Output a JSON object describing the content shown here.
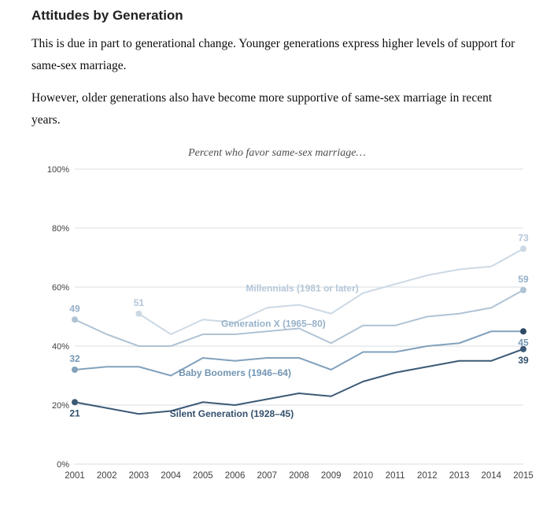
{
  "header": {
    "title": "Attitudes by Generation"
  },
  "paragraphs": [
    "This is due in part to generational change. Younger generations express higher levels of support for same-sex marriage.",
    "However, older generations also have become more supportive of same-sex marriage in recent years."
  ],
  "chart_data": {
    "type": "line",
    "title": "Percent who favor same-sex marriage…",
    "xlabel": "",
    "ylabel": "",
    "ylim": [
      0,
      100
    ],
    "yticks": [
      0,
      20,
      40,
      60,
      80,
      100
    ],
    "ytick_suffix": "%",
    "grid": true,
    "legend_position": "inline",
    "x": [
      2001,
      2002,
      2003,
      2004,
      2005,
      2006,
      2007,
      2008,
      2009,
      2010,
      2011,
      2012,
      2013,
      2014,
      2015
    ],
    "series": [
      {
        "name": "Millennials (1981 or later)",
        "color": "#ccd9e5",
        "label_color": "#b3c6d8",
        "x": [
          2003,
          2004,
          2005,
          2006,
          2007,
          2008,
          2009,
          2010,
          2011,
          2012,
          2013,
          2014,
          2015
        ],
        "values": [
          51,
          44,
          49,
          48,
          53,
          54,
          51,
          58,
          61,
          64,
          66,
          67,
          73
        ],
        "markers": [
          {
            "year": 2003,
            "value": 51,
            "label": "51",
            "side": "above"
          },
          {
            "year": 2015,
            "value": 73,
            "label": "73",
            "side": "above"
          }
        ],
        "inline_label": {
          "year": 2008.1,
          "value": 58.5
        }
      },
      {
        "name": "Generation X (1965–80)",
        "color": "#afc3d5",
        "label_color": "#96b1c9",
        "x": [
          2001,
          2002,
          2003,
          2004,
          2005,
          2006,
          2007,
          2008,
          2009,
          2010,
          2011,
          2012,
          2013,
          2014,
          2015
        ],
        "values": [
          49,
          44,
          40,
          40,
          44,
          44,
          45,
          46,
          41,
          47,
          47,
          50,
          51,
          53,
          59
        ],
        "markers": [
          {
            "year": 2001,
            "value": 49,
            "label": "49",
            "side": "above"
          },
          {
            "year": 2015,
            "value": 59,
            "label": "59",
            "side": "above"
          }
        ],
        "inline_label": {
          "year": 2007.2,
          "value": 46.5
        }
      },
      {
        "name": "Baby Boomers (1946–64)",
        "color": "#82a1bc",
        "label_color": "#7296b4",
        "x": [
          2001,
          2002,
          2003,
          2004,
          2005,
          2006,
          2007,
          2008,
          2009,
          2010,
          2011,
          2012,
          2013,
          2014,
          2015
        ],
        "values": [
          32,
          33,
          33,
          30,
          36,
          35,
          36,
          36,
          32,
          38,
          38,
          40,
          41,
          45,
          45
        ],
        "markers": [
          {
            "year": 2001,
            "value": 32,
            "label": "32",
            "side": "above"
          },
          {
            "year": 2015,
            "value": 45,
            "label": "45",
            "side": "below",
            "dot_color": "#2e4a66"
          }
        ],
        "inline_label": {
          "year": 2006.0,
          "value": 29.9
        }
      },
      {
        "name": "Silent Generation (1928–45)",
        "color": "#3c5a76",
        "label_color": "#33506c",
        "x": [
          2001,
          2002,
          2003,
          2004,
          2005,
          2006,
          2007,
          2008,
          2009,
          2010,
          2011,
          2012,
          2013,
          2014,
          2015
        ],
        "values": [
          21,
          19,
          17,
          18,
          21,
          20,
          22,
          24,
          23,
          28,
          31,
          33,
          35,
          35,
          39
        ],
        "markers": [
          {
            "year": 2001,
            "value": 21,
            "label": "21",
            "side": "below"
          },
          {
            "year": 2015,
            "value": 39,
            "label": "39",
            "side": "below"
          }
        ],
        "inline_label": {
          "year": 2005.9,
          "value": 16
        }
      }
    ]
  }
}
